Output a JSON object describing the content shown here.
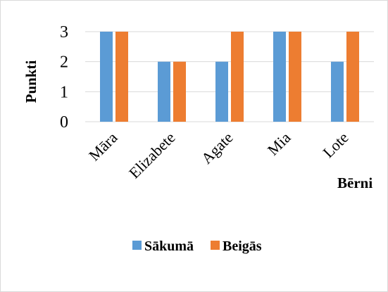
{
  "chart_data": {
    "type": "bar",
    "categories": [
      "Māra",
      "Elizabete",
      "Agate",
      "Mia",
      "Lote"
    ],
    "series": [
      {
        "name": "Sākumā",
        "values": [
          3,
          2,
          2,
          3,
          2
        ],
        "color": "#5b9bd5"
      },
      {
        "name": "Beigās",
        "values": [
          3,
          2,
          3,
          3,
          3
        ],
        "color": "#ed7d31"
      }
    ],
    "ylabel": "Punkti",
    "xlabel": "Bērni",
    "ylim": [
      0,
      3
    ],
    "yticks": [
      "0",
      "1",
      "2",
      "3"
    ],
    "grid": true,
    "legend_position": "bottom"
  }
}
